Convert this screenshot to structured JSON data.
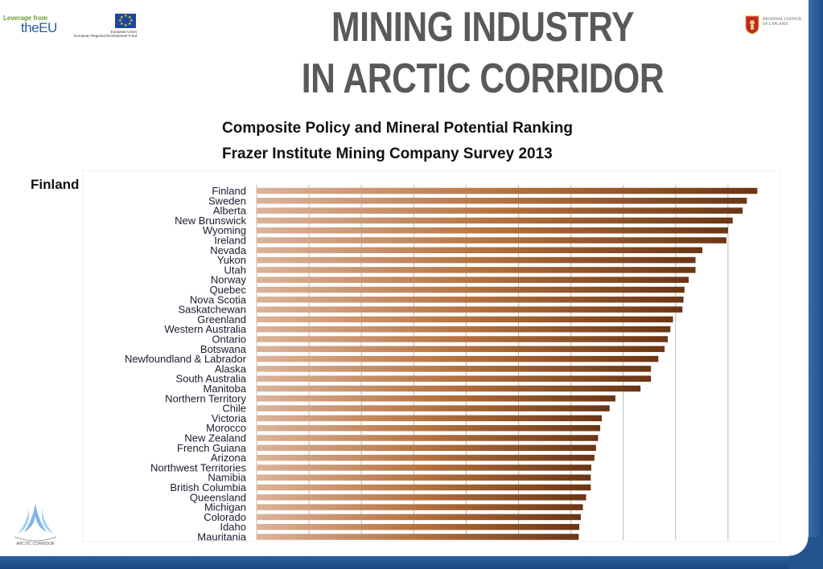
{
  "header": {
    "eu_logo": {
      "leverage": "Leverage from",
      "brand": "theEU",
      "eu_caption_line1": "European Union",
      "eu_caption_line2": "European Regional Development Fund"
    },
    "council_logo": {
      "line1": "REGIONAL COUNCIL",
      "line2": "OF LAPLAND"
    },
    "title_line1": "MINING INDUSTRY",
    "title_line2": "IN ARCTIC CORRIDOR",
    "subtitle_line1": "Composite Policy and Mineral Potential Ranking",
    "subtitle_line2": "Frazer Institute Mining Company Survey 2013"
  },
  "callout": {
    "label": "Finland"
  },
  "footer_logo": {
    "text": "ARCTIC CORRIDOR"
  },
  "colors": {
    "frame": "#25538f",
    "arrow": "#1e3fd6",
    "bar_light": "#d8ae92",
    "bar_dark": "#6a3514",
    "title": "#595959"
  },
  "chart_data": {
    "type": "bar",
    "orientation": "horizontal",
    "categories": [
      "Finland",
      "Sweden",
      "Alberta",
      "New Brunswick",
      "Wyoming",
      "Ireland",
      "Nevada",
      "Yukon",
      "Utah",
      "Norway",
      "Quebec",
      "Nova Scotia",
      "Saskatchewan",
      "Greenland",
      "Western Australia",
      "Ontario",
      "Botswana",
      "Newfoundland & Labrador",
      "Alaska",
      "South Australia",
      "Manitoba",
      "Northern Territory",
      "Chile",
      "Victoria",
      "Morocco",
      "New Zealand",
      "French Guiana",
      "Arizona",
      "Northwest Territories",
      "Namibia",
      "British Columbia",
      "Queensland",
      "Michigan",
      "Colorado",
      "Idaho",
      "Mauritania"
    ],
    "values": [
      95.6,
      93.6,
      92.8,
      90.9,
      90.0,
      89.7,
      85.1,
      83.8,
      83.8,
      82.5,
      81.7,
      81.5,
      81.3,
      79.5,
      79.0,
      78.5,
      77.9,
      76.7,
      75.3,
      75.3,
      73.3,
      68.5,
      67.4,
      65.9,
      65.6,
      65.2,
      64.8,
      64.5,
      63.9,
      63.8,
      63.8,
      62.9,
      62.3,
      61.9,
      61.6,
      61.5
    ],
    "xlim": [
      0,
      100
    ],
    "grid": true,
    "title": "",
    "xlabel": "",
    "ylabel": ""
  }
}
